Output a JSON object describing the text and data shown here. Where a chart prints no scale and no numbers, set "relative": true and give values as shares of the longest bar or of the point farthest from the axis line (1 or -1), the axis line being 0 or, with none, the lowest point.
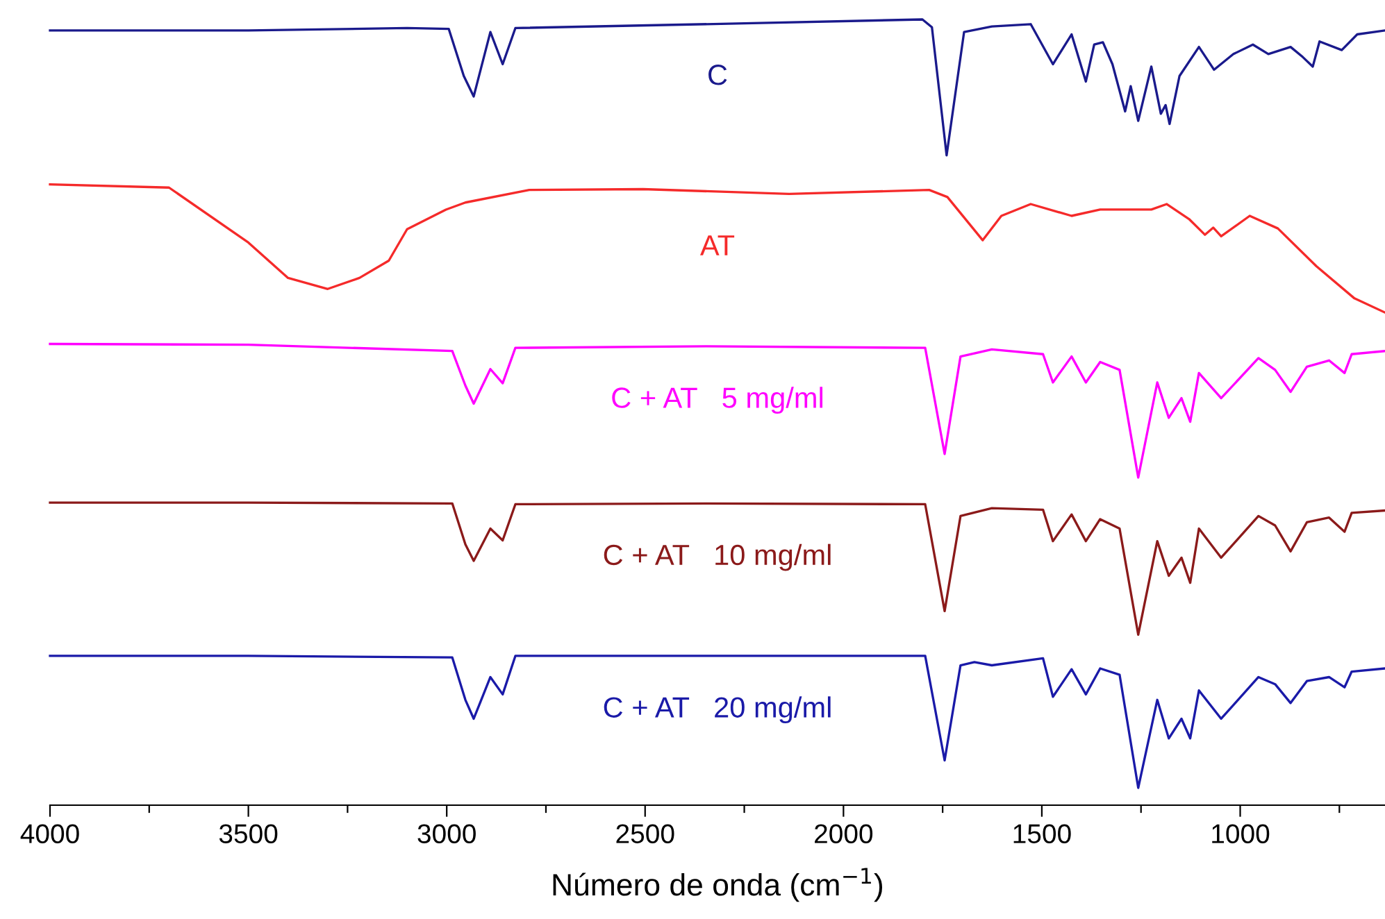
{
  "chart_data": {
    "type": "line",
    "relative": true,
    "xlabel": "Número de onda (cm$^{−1}$)",
    "xlim": [
      4000,
      635
    ],
    "xticks": [
      4000,
      {
        "value": 3750,
        "label": null
      },
      3500,
      {
        "value": 3250,
        "label": null
      },
      3000,
      {
        "value": 2750,
        "label": null
      },
      2500,
      {
        "value": 2250,
        "label": null
      },
      2000,
      {
        "value": 1750,
        "label": null
      },
      1500,
      {
        "value": 1250,
        "label": null
      },
      1000,
      {
        "value": 750,
        "label": null
      }
    ],
    "grid": false,
    "legend": false,
    "tick_labels": "x",
    "marker": "none",
    "line_style": "solid",
    "series": [
      {
        "name": "C",
        "color": "#1a1a8c",
        "x": [
          4000,
          3500,
          3100,
          2995,
          2957,
          2932,
          2890,
          2859,
          2827,
          2250,
          1801,
          1777,
          1740,
          1696,
          1626,
          1528,
          1472,
          1425,
          1389,
          1368,
          1346,
          1322,
          1290,
          1276,
          1257,
          1224,
          1200,
          1188,
          1178,
          1153,
          1104,
          1066,
          1017,
          968,
          929,
          873,
          842,
          817,
          800,
          744,
          705,
          635
        ],
        "values": [
          0.986,
          0.986,
          0.989,
          0.988,
          0.928,
          0.902,
          0.984,
          0.943,
          0.989,
          0.995,
          1.0,
          0.99,
          0.827,
          0.984,
          0.991,
          0.994,
          0.943,
          0.981,
          0.921,
          0.968,
          0.971,
          0.943,
          0.883,
          0.915,
          0.871,
          0.94,
          0.88,
          0.891,
          0.867,
          0.928,
          0.965,
          0.936,
          0.956,
          0.968,
          0.956,
          0.965,
          0.952,
          0.94,
          0.972,
          0.961,
          0.981,
          0.986
        ]
      },
      {
        "name": "AT",
        "color": "#f52a2a",
        "x": [
          4000,
          3700,
          3500,
          3400,
          3300,
          3220,
          3146,
          3100,
          3002,
          2953,
          2792,
          2505,
          2137,
          1784,
          1738,
          1649,
          1602,
          1528,
          1425,
          1353,
          1224,
          1185,
          1129,
          1089,
          1068,
          1048,
          976,
          905,
          808,
          712,
          635
        ],
        "values": [
          0.79,
          0.786,
          0.716,
          0.671,
          0.657,
          0.671,
          0.693,
          0.733,
          0.758,
          0.767,
          0.783,
          0.784,
          0.778,
          0.783,
          0.774,
          0.719,
          0.75,
          0.765,
          0.75,
          0.758,
          0.758,
          0.765,
          0.746,
          0.726,
          0.735,
          0.724,
          0.75,
          0.734,
          0.686,
          0.645,
          0.627
        ]
      },
      {
        "name": "C + AT   5 mg/ml",
        "color": "#ff00ff",
        "x": [
          4000,
          3500,
          2986,
          2953,
          2932,
          2890,
          2859,
          2827,
          2346,
          1794,
          1745,
          1705,
          1626,
          1497,
          1472,
          1425,
          1389,
          1353,
          1304,
          1257,
          1209,
          1180,
          1148,
          1126,
          1104,
          1048,
          954,
          912,
          873,
          832,
          776,
          737,
          719,
          635
        ],
        "values": [
          0.587,
          0.586,
          0.578,
          0.534,
          0.511,
          0.555,
          0.537,
          0.582,
          0.584,
          0.582,
          0.447,
          0.571,
          0.58,
          0.574,
          0.538,
          0.571,
          0.538,
          0.564,
          0.554,
          0.417,
          0.538,
          0.493,
          0.518,
          0.488,
          0.55,
          0.518,
          0.569,
          0.554,
          0.526,
          0.558,
          0.566,
          0.55,
          0.574,
          0.578
        ]
      },
      {
        "name": "C + AT   10 mg/ml",
        "color": "#8b1a1a",
        "x": [
          4000,
          3500,
          2986,
          2953,
          2932,
          2890,
          2859,
          2827,
          2346,
          1794,
          1745,
          1705,
          1626,
          1497,
          1472,
          1425,
          1389,
          1353,
          1304,
          1257,
          1209,
          1180,
          1148,
          1126,
          1104,
          1048,
          954,
          912,
          873,
          832,
          776,
          737,
          719,
          635
        ],
        "values": [
          0.385,
          0.385,
          0.384,
          0.332,
          0.311,
          0.352,
          0.337,
          0.383,
          0.384,
          0.383,
          0.247,
          0.368,
          0.378,
          0.376,
          0.336,
          0.37,
          0.336,
          0.364,
          0.352,
          0.217,
          0.336,
          0.292,
          0.315,
          0.283,
          0.352,
          0.315,
          0.368,
          0.356,
          0.323,
          0.36,
          0.366,
          0.348,
          0.372,
          0.375
        ]
      },
      {
        "name": "C + AT   20 mg/ml",
        "color": "#1a1aa8",
        "x": [
          4000,
          3500,
          2986,
          2953,
          2932,
          2890,
          2859,
          2827,
          2346,
          1794,
          1745,
          1705,
          1670,
          1626,
          1497,
          1472,
          1425,
          1389,
          1353,
          1304,
          1257,
          1209,
          1180,
          1148,
          1126,
          1104,
          1048,
          954,
          912,
          873,
          832,
          776,
          737,
          719,
          635
        ],
        "values": [
          0.19,
          0.19,
          0.188,
          0.134,
          0.11,
          0.163,
          0.141,
          0.19,
          0.19,
          0.19,
          0.057,
          0.178,
          0.182,
          0.178,
          0.187,
          0.138,
          0.173,
          0.141,
          0.174,
          0.166,
          0.022,
          0.134,
          0.085,
          0.11,
          0.085,
          0.146,
          0.11,
          0.163,
          0.154,
          0.13,
          0.158,
          0.163,
          0.15,
          0.17,
          0.174
        ]
      }
    ]
  }
}
